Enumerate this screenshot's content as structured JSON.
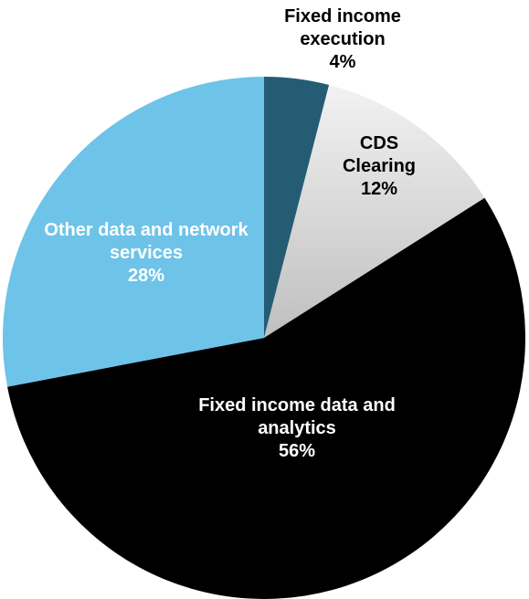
{
  "chart_data": {
    "type": "pie",
    "categories": [
      "Fixed income execution",
      "CDS Clearing",
      "Fixed income data and analytics",
      "Other data and network services"
    ],
    "values": [
      4,
      12,
      56,
      28
    ],
    "value_labels": [
      "4%",
      "12%",
      "56%",
      "28%"
    ],
    "colors": [
      "#245d73",
      "#d9d9d9",
      "#000000",
      "#6ec3e8"
    ],
    "label_colors": [
      "#000000",
      "#000000",
      "#ffffff",
      "#ffffff"
    ]
  }
}
